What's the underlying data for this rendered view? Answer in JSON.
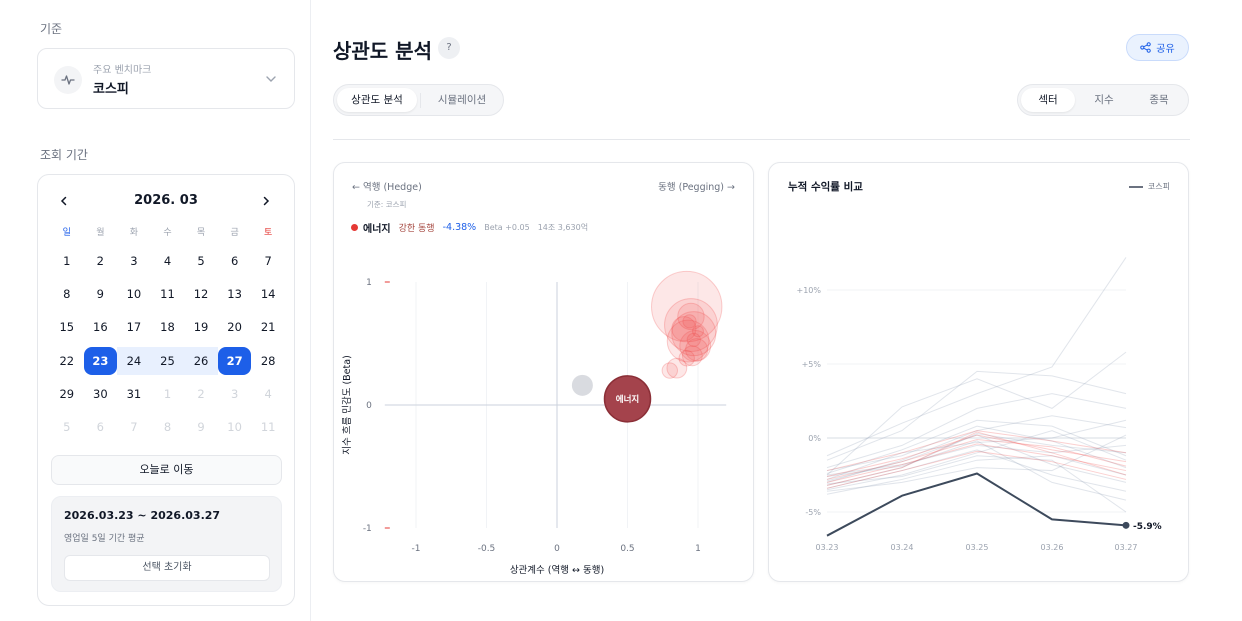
{
  "sidebar": {
    "basis_label": "기준",
    "benchmark": {
      "sub": "주요 벤치마크",
      "name": "코스피",
      "icon": "pulse-icon"
    },
    "period_label": "조회 기간",
    "calendar": {
      "title": "2026. 03",
      "weekdays": [
        "일",
        "월",
        "화",
        "수",
        "목",
        "금",
        "토"
      ],
      "weeks": [
        [
          "1",
          "2",
          "3",
          "4",
          "5",
          "6",
          "7"
        ],
        [
          "8",
          "9",
          "10",
          "11",
          "12",
          "13",
          "14"
        ],
        [
          "15",
          "16",
          "17",
          "18",
          "19",
          "20",
          "21"
        ],
        [
          "22",
          "23",
          "24",
          "25",
          "26",
          "27",
          "28"
        ],
        [
          "29",
          "30",
          "31",
          "1",
          "2",
          "3",
          "4"
        ],
        [
          "5",
          "6",
          "7",
          "8",
          "9",
          "10",
          "11"
        ]
      ],
      "range_start": "23",
      "range_end": "27"
    },
    "today_button": "오늘로 이동",
    "range_text": "2026.03.23 ~ 2026.03.27",
    "range_sub": "영업일 5일 기간 평균",
    "reset_button": "선택 초기화"
  },
  "header": {
    "title": "상관도 분석",
    "help": "?",
    "share_label": "공유",
    "tabs_left": [
      "상관도 분석",
      "시뮬레이션"
    ],
    "tabs_right": [
      "섹터",
      "지수",
      "종목"
    ]
  },
  "left_card": {
    "hedge_label": "← 역행 (Hedge)",
    "pegging_label": "동행 (Pegging) →",
    "basis": "기준: 코스피",
    "selected": {
      "name": "에너지",
      "tag": "강한 동행",
      "return": "-4.38%",
      "beta": "Beta +0.05",
      "cap": "14조 3,630억",
      "color": "#e53935"
    },
    "chart_data": {
      "type": "scatter",
      "xlabel": "상관계수 (역행 ↔ 동행)",
      "ylabel": "지수 흐름 민감도 (Beta)",
      "xlim": [
        -1.2,
        1.2
      ],
      "ylim": [
        -1,
        1
      ],
      "xticks": [
        "-1",
        "-0.5",
        "0",
        "0.5",
        "1"
      ],
      "yticks": [
        "1",
        "0",
        "-1"
      ],
      "highlight": {
        "label": "에너지",
        "x": 0.5,
        "y": 0.05,
        "r": 1.0,
        "color": "#a4434c"
      },
      "points": [
        {
          "x": 0.92,
          "y": 0.8,
          "r": 1.6
        },
        {
          "x": 0.95,
          "y": 0.65,
          "r": 1.2
        },
        {
          "x": 0.97,
          "y": 0.58,
          "r": 1.0
        },
        {
          "x": 0.93,
          "y": 0.52,
          "r": 0.95
        },
        {
          "x": 0.98,
          "y": 0.48,
          "r": 0.7
        },
        {
          "x": 0.95,
          "y": 0.72,
          "r": 0.6
        },
        {
          "x": 0.9,
          "y": 0.62,
          "r": 0.55
        },
        {
          "x": 0.99,
          "y": 0.45,
          "r": 0.5
        },
        {
          "x": 0.96,
          "y": 0.4,
          "r": 0.45
        },
        {
          "x": 0.85,
          "y": 0.3,
          "r": 0.45
        },
        {
          "x": 0.8,
          "y": 0.28,
          "r": 0.35
        },
        {
          "x": 0.92,
          "y": 0.38,
          "r": 0.35
        },
        {
          "x": 0.97,
          "y": 0.53,
          "r": 0.3
        },
        {
          "x": 0.94,
          "y": 0.68,
          "r": 0.3
        },
        {
          "x": 1.0,
          "y": 0.6,
          "r": 0.25
        }
      ],
      "gray_point": {
        "x": 0.18,
        "y": 0.16,
        "r": 0.35
      }
    }
  },
  "right_card": {
    "title": "누적 수익률 비교",
    "legend": "코스피",
    "chart_data": {
      "type": "line",
      "categories": [
        "03.23",
        "03.24",
        "03.25",
        "03.26",
        "03.27"
      ],
      "yticks": [
        "+10%",
        "+5%",
        "0%",
        "-5%"
      ],
      "ylim": [
        -6.7,
        12
      ],
      "benchmark": {
        "name": "코스피",
        "values": [
          -6.6,
          -3.9,
          -2.4,
          -5.5,
          -5.9
        ],
        "end_label": "-5.9%",
        "color": "#3d4a5c"
      },
      "faint_series": [
        [
          -1.2,
          1.0,
          3.0,
          4.8,
          12.2
        ],
        [
          -2.5,
          2.1,
          4.0,
          2.0,
          5.8
        ],
        [
          -1.5,
          0.5,
          4.5,
          4.2,
          3.0
        ],
        [
          -2.0,
          -0.5,
          2.0,
          3.0,
          2.0
        ],
        [
          -3.0,
          -1.5,
          0.5,
          1.5,
          0.7
        ],
        [
          -2.8,
          -1.0,
          -0.3,
          0.0,
          1.2
        ],
        [
          -3.2,
          -2.0,
          0.3,
          -0.5,
          -1.0
        ],
        [
          -2.5,
          -1.8,
          -0.5,
          -1.0,
          -0.5
        ],
        [
          -3.5,
          -2.5,
          -1.0,
          0.5,
          -1.5
        ],
        [
          -2.2,
          -1.2,
          0.8,
          -0.2,
          -2.0
        ],
        [
          -3.8,
          -2.8,
          -1.5,
          -1.2,
          -2.5
        ],
        [
          -2.9,
          -1.6,
          0.2,
          -1.8,
          -3.0
        ],
        [
          -3.4,
          -2.2,
          -0.8,
          -2.5,
          -3.6
        ],
        [
          -2.6,
          -1.9,
          -0.2,
          -3.0,
          -4.2
        ],
        [
          -3.1,
          -2.6,
          -1.2,
          -1.5,
          -5.0
        ],
        [
          -3.6,
          -3.0,
          -2.0,
          -2.2,
          0.2
        ],
        [
          -2.4,
          -0.8,
          1.2,
          0.8,
          -1.2
        ]
      ],
      "pink_series": [
        [
          -2.6,
          -1.4,
          0.2,
          -0.8,
          -1.6
        ],
        [
          -3.0,
          -1.8,
          -0.4,
          -1.2,
          -2.2
        ],
        [
          -2.2,
          -1.0,
          0.5,
          -0.2,
          -1.0
        ],
        [
          -3.4,
          -2.2,
          -0.9,
          -1.6,
          -2.8
        ],
        [
          -2.8,
          -1.6,
          -0.1,
          -0.6,
          -1.9
        ],
        [
          -3.2,
          -2.0,
          0.4,
          -1.0,
          -2.5
        ]
      ]
    }
  }
}
